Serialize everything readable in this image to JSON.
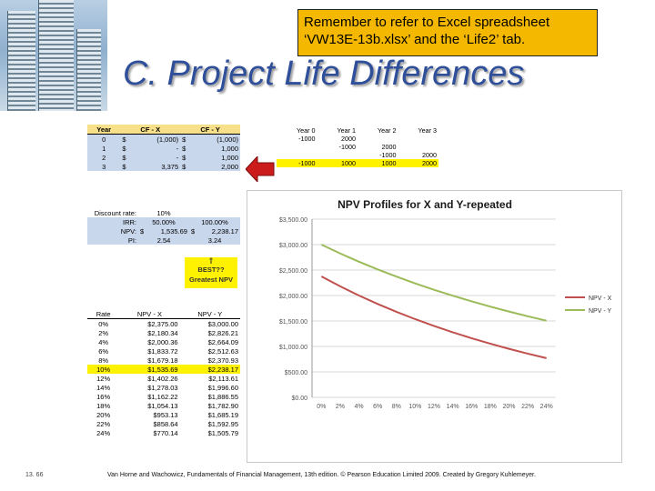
{
  "note": {
    "line1": "Remember to refer to Excel spreadsheet",
    "line2": "‘VW13E-13b.xlsx’ and the ‘Life2’ tab."
  },
  "title": "C.  Project Life Differences",
  "cf_table": {
    "headers": [
      "Year",
      "CF - X",
      "CF - Y"
    ],
    "rows": [
      {
        "year": "0",
        "x_sym": "$",
        "x": "(1,000)",
        "y_sym": "$",
        "y": "(1,000)"
      },
      {
        "year": "1",
        "x_sym": "$",
        "x": "-",
        "y_sym": "$",
        "y": "1,000"
      },
      {
        "year": "2",
        "x_sym": "$",
        "x": "-",
        "y_sym": "$",
        "y": "1,000"
      },
      {
        "year": "3",
        "x_sym": "$",
        "x": "3,375",
        "y_sym": "$",
        "y": "2,000"
      }
    ]
  },
  "year_table": {
    "headers": [
      "Year 0",
      "Year 1",
      "Year 2",
      "Year 3"
    ],
    "row1": [
      "-1000",
      "2000",
      "",
      ""
    ],
    "row2": [
      "",
      "-1000",
      "2000",
      ""
    ],
    "row3": [
      "",
      "",
      "-1000",
      "2000"
    ],
    "row4": [
      "-1000",
      "1000",
      "1000",
      "2000"
    ]
  },
  "summary": {
    "discount_label": "Discount rate:",
    "discount_value": "10%",
    "irr_label": "IRR:",
    "irr_x": "50.00%",
    "irr_y": "100.00%",
    "npv_label": "NPV:",
    "npv_x_sym": "$",
    "npv_x": "1,535.69",
    "npv_y_sym": "$",
    "npv_y": "2,238.17",
    "pi_label": "PI:",
    "pi_x": "2.54",
    "pi_y": "3.24",
    "best_arrow": "⇑",
    "best_line1": "BEST??",
    "best_line2": "Greatest NPV"
  },
  "rate_table": {
    "headers": [
      "Rate",
      "NPV - X",
      "NPV - Y"
    ],
    "rows": [
      [
        "0%",
        "$2,375.00",
        "$3,000.00"
      ],
      [
        "2%",
        "$2,180.34",
        "$2,826.21"
      ],
      [
        "4%",
        "$2,000.36",
        "$2,664.09"
      ],
      [
        "6%",
        "$1,833.72",
        "$2,512.63"
      ],
      [
        "8%",
        "$1,679.18",
        "$2,370.93"
      ],
      [
        "10%",
        "$1,535.69",
        "$2,238.17"
      ],
      [
        "12%",
        "$1,402.26",
        "$2,113.61"
      ],
      [
        "14%",
        "$1,278.03",
        "$1,996.60"
      ],
      [
        "16%",
        "$1,162.22",
        "$1,886.55"
      ],
      [
        "18%",
        "$1,054.13",
        "$1,782.90"
      ],
      [
        "20%",
        "$953.13",
        "$1,685.19"
      ],
      [
        "22%",
        "$858.64",
        "$1,592.95"
      ],
      [
        "24%",
        "$770.14",
        "$1,505.79"
      ]
    ],
    "highlight_index": 5
  },
  "colors": {
    "note_bg": "#f5b800",
    "title": "#2f4f9a",
    "header_bg": "#f8e08a",
    "highlight": "#fff200",
    "selected_bg": "#c9d7ec",
    "series_x": "#c0504d",
    "series_y": "#9bbb59",
    "arrow": "#cc1b1b"
  },
  "chart_data": {
    "type": "line",
    "title": "NPV Profiles for X and Y-repeated",
    "x": [
      "0%",
      "2%",
      "4%",
      "6%",
      "8%",
      "10%",
      "12%",
      "14%",
      "16%",
      "18%",
      "20%",
      "22%",
      "24%"
    ],
    "y_ticks": [
      "$3,500.00",
      "$3,000.00",
      "$2,500.00",
      "$2,000.00",
      "$1,500.00",
      "$1,000.00",
      "$500.00",
      "$0.00"
    ],
    "ylim": [
      0,
      3500
    ],
    "series": [
      {
        "name": "NPV - X",
        "color": "#c0504d",
        "values": [
          2375.0,
          2180.34,
          2000.36,
          1833.72,
          1679.18,
          1535.69,
          1402.26,
          1278.03,
          1162.22,
          1054.13,
          953.13,
          858.64,
          770.14
        ]
      },
      {
        "name": "NPV - Y",
        "color": "#9bbb59",
        "values": [
          3000.0,
          2826.21,
          2664.09,
          2512.63,
          2370.93,
          2238.17,
          2113.61,
          1996.6,
          1886.55,
          1782.9,
          1685.19,
          1592.95,
          1505.79
        ]
      }
    ],
    "legend": "right",
    "grid": true
  },
  "slide_number": "13. 66",
  "footer": "Van Horne and Wachowicz, Fundamentals of Financial Management, 13th edition. © Pearson Education Limited 2009. Created by Gregory Kuhlemeyer."
}
